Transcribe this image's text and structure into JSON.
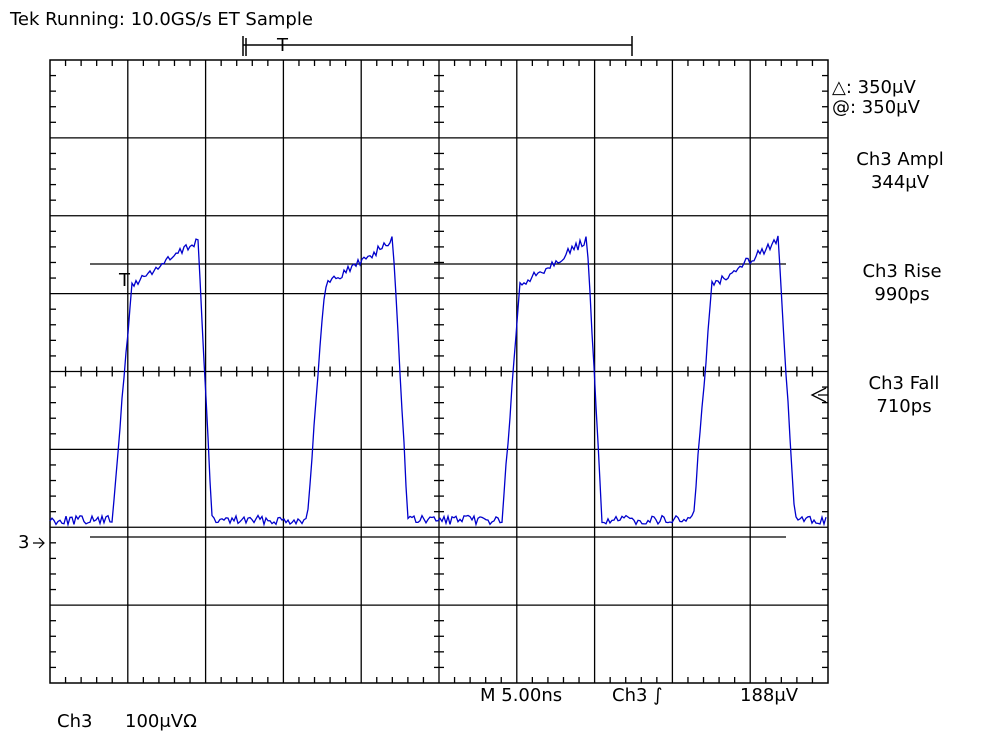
{
  "header": {
    "title": "Tek Running: 10.0GS/s ET  Sample",
    "trigger_marker": "T"
  },
  "cursors": {
    "delta": "△: 350μV",
    "at": "@: 350μV"
  },
  "measurements": [
    {
      "label": "Ch3 Ampl",
      "value": "344μV"
    },
    {
      "label": "Ch3 Rise",
      "value": "990ps"
    },
    {
      "label": "Ch3 Fall",
      "value": "710ps"
    }
  ],
  "status": {
    "timebase": "M 5.00ns",
    "trigger_source": "Ch3 ∫",
    "trigger_level": "188μV"
  },
  "channel": {
    "name": "Ch3",
    "scale": "100μVΩ",
    "marker": "3"
  }
}
